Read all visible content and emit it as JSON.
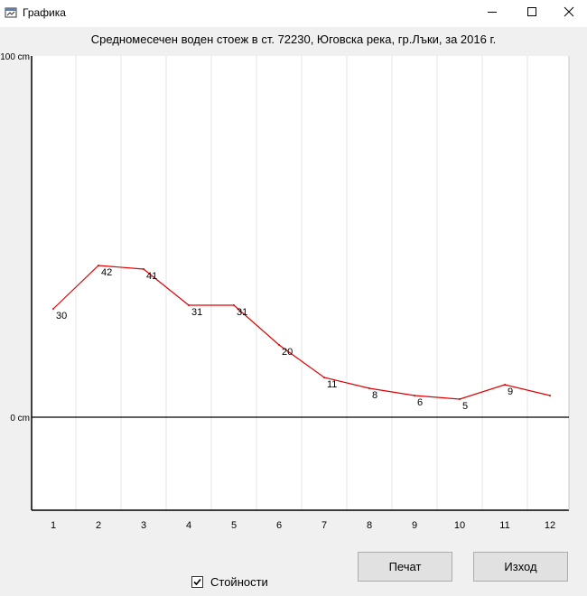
{
  "window": {
    "title": "Графика",
    "icons": [
      "chart-app-icon",
      "minimize-icon",
      "maximize-icon",
      "close-icon"
    ]
  },
  "chart_data": {
    "type": "line",
    "title": "Средномесечен воден стоеж в ст. 72230, Юговска река, гр.Лъки, за 2016 г.",
    "categories": [
      "1",
      "2",
      "3",
      "4",
      "5",
      "6",
      "7",
      "8",
      "9",
      "10",
      "11",
      "12"
    ],
    "values": [
      30,
      42,
      41,
      31,
      31,
      20,
      11,
      8,
      6,
      5,
      9,
      6
    ],
    "data_labels": [
      "30",
      "42",
      "41",
      "31",
      "31",
      "20",
      "11",
      "8",
      "6",
      "5",
      "9",
      ""
    ],
    "y_tick_labels": [
      "100 cm",
      "0 cm"
    ],
    "ylim": [
      -25,
      100
    ],
    "grid": true,
    "series_color": "#e00000",
    "zero_line_color": "#000000"
  },
  "controls": {
    "values_checkbox_label": "Стойности",
    "values_checked": true,
    "print_label": "Печат",
    "exit_label": "Изход"
  }
}
